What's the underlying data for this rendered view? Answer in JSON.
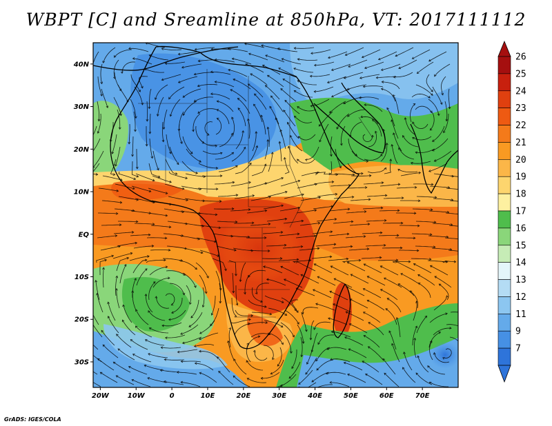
{
  "title": "WBPT [C] and Sreamline at 850hPa, VT: 2017111112",
  "credit": "GrADS: IGES/COLA",
  "map": {
    "lon_range": [
      -22,
      80
    ],
    "lat_range": [
      -36,
      45
    ],
    "lat_ticks": [
      {
        "value": 40,
        "label": "40N"
      },
      {
        "value": 30,
        "label": "30N"
      },
      {
        "value": 20,
        "label": "20N"
      },
      {
        "value": 10,
        "label": "10N"
      },
      {
        "value": 0,
        "label": "EQ"
      },
      {
        "value": -10,
        "label": "10S"
      },
      {
        "value": -20,
        "label": "20S"
      },
      {
        "value": -30,
        "label": "30S"
      }
    ],
    "lon_ticks": [
      {
        "value": -20,
        "label": "20W"
      },
      {
        "value": -10,
        "label": "10W"
      },
      {
        "value": 0,
        "label": "0"
      },
      {
        "value": 10,
        "label": "10E"
      },
      {
        "value": 20,
        "label": "20E"
      },
      {
        "value": 30,
        "label": "30E"
      },
      {
        "value": 40,
        "label": "40E"
      },
      {
        "value": 50,
        "label": "50E"
      },
      {
        "value": 60,
        "label": "60E"
      },
      {
        "value": 70,
        "label": "70E"
      }
    ]
  },
  "colorbar": {
    "levels": [
      {
        "label": "26",
        "color": "#a50f0f"
      },
      {
        "label": "25",
        "color": "#c8200e"
      },
      {
        "label": "24",
        "color": "#e0400f"
      },
      {
        "label": "23",
        "color": "#ee5a12"
      },
      {
        "label": "22",
        "color": "#f47a1a"
      },
      {
        "label": "21",
        "color": "#f99a22"
      },
      {
        "label": "20",
        "color": "#fbb648"
      },
      {
        "label": "19",
        "color": "#fdd56e"
      },
      {
        "label": "18",
        "color": "#fdf0a0"
      },
      {
        "label": "17",
        "color": "#4fbd4c"
      },
      {
        "label": "16",
        "color": "#8ad67a"
      },
      {
        "label": "15",
        "color": "#c6ecb6"
      },
      {
        "label": "14",
        "color": "#e4f6fa"
      },
      {
        "label": "13",
        "color": "#b4dcf4"
      },
      {
        "label": "12",
        "color": "#8cc6f0"
      },
      {
        "label": "11",
        "color": "#64aaea"
      },
      {
        "label": "9",
        "color": "#4690e4"
      },
      {
        "label": "7",
        "color": "#2e74da"
      }
    ],
    "top_arrow_color": "#a50f0f",
    "bottom_arrow_color": "#2e74da"
  }
}
